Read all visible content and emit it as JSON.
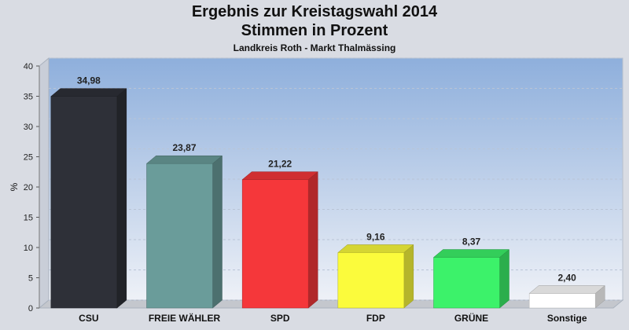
{
  "chart_data": {
    "type": "bar",
    "title": "Ergebnis zur Kreistagswahl 2014",
    "title_line2": "Stimmen in Prozent",
    "subtitle": "Landkreis Roth - Markt Thalmässing",
    "ylabel": "%",
    "ylim": [
      0,
      40
    ],
    "yticks": [
      0,
      5,
      10,
      15,
      20,
      25,
      30,
      35,
      40
    ],
    "grid": true,
    "categories": [
      "CSU",
      "FREIE WÄHLER",
      "SPD",
      "FDP",
      "GRÜNE",
      "Sonstige"
    ],
    "values": [
      34.98,
      23.87,
      21.22,
      9.16,
      8.37,
      2.4
    ],
    "value_labels": [
      "34,98",
      "23,87",
      "21,22",
      "9,16",
      "8,37",
      "2,40"
    ],
    "colors": [
      "#2e3038",
      "#6a9c9a",
      "#f5373a",
      "#fbfb3c",
      "#3cf26a",
      "#ffffff"
    ]
  }
}
